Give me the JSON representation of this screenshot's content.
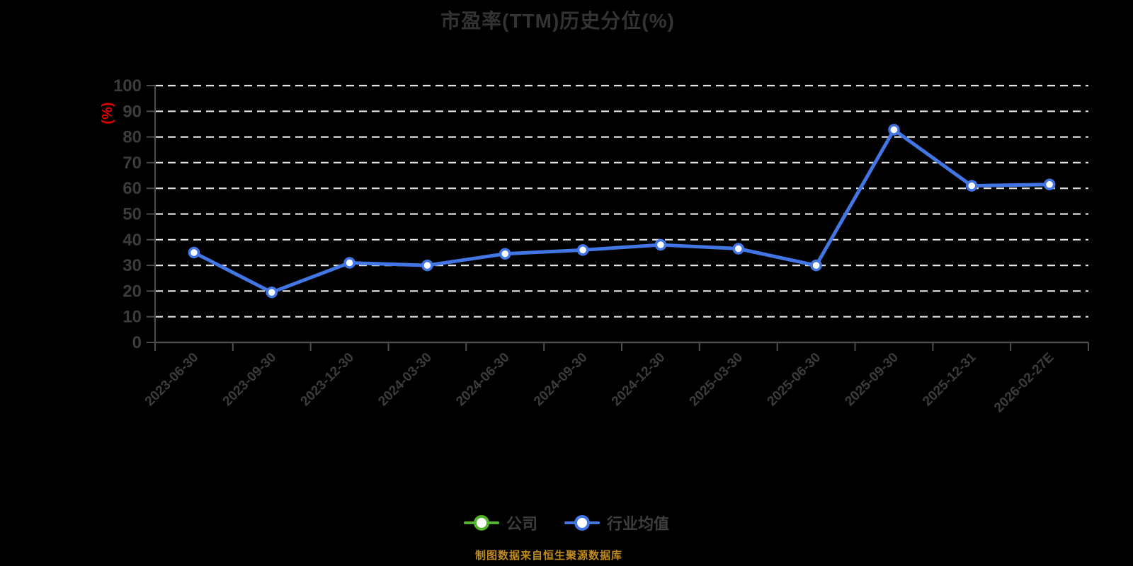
{
  "chart_data": {
    "type": "line",
    "title": "市盈率(TTM)历史分位(%)",
    "xlabel": "",
    "ylabel": "(%)",
    "categories": [
      "2023-06-30",
      "2023-09-30",
      "2023-12-30",
      "2024-03-30",
      "2024-06-30",
      "2024-09-30",
      "2024-12-30",
      "2025-03-30",
      "2025-06-30",
      "2025-09-30",
      "2025-12-31",
      "2026-02-27E"
    ],
    "series": [
      {
        "name": "公司",
        "color": "#54b22e",
        "marker": "circle",
        "values": []
      },
      {
        "name": "行业均值",
        "color": "#4276e4",
        "marker": "circle",
        "values": [
          35,
          19.5,
          31,
          30,
          34.5,
          36,
          38,
          36.5,
          30,
          82.8,
          61,
          61.5
        ]
      }
    ],
    "ylim": [
      0,
      100
    ],
    "y_ticks": [
      0,
      10,
      20,
      30,
      40,
      50,
      60,
      70,
      80,
      90,
      100
    ],
    "grid": "horizontal-dashed",
    "legend_position": "bottom-center"
  },
  "footer": {
    "source_note": "制图数据来自恒生聚源数据库"
  },
  "colors": {
    "background": "#000000",
    "title": "#333333",
    "axis_line": "#4d4d4d",
    "tick_label": "#3c3c3c",
    "gridline": "#e2e2e2",
    "y_unit_label": "#e60000",
    "legend_label": "#3d3d3d",
    "footer": "#bf8b1e"
  }
}
